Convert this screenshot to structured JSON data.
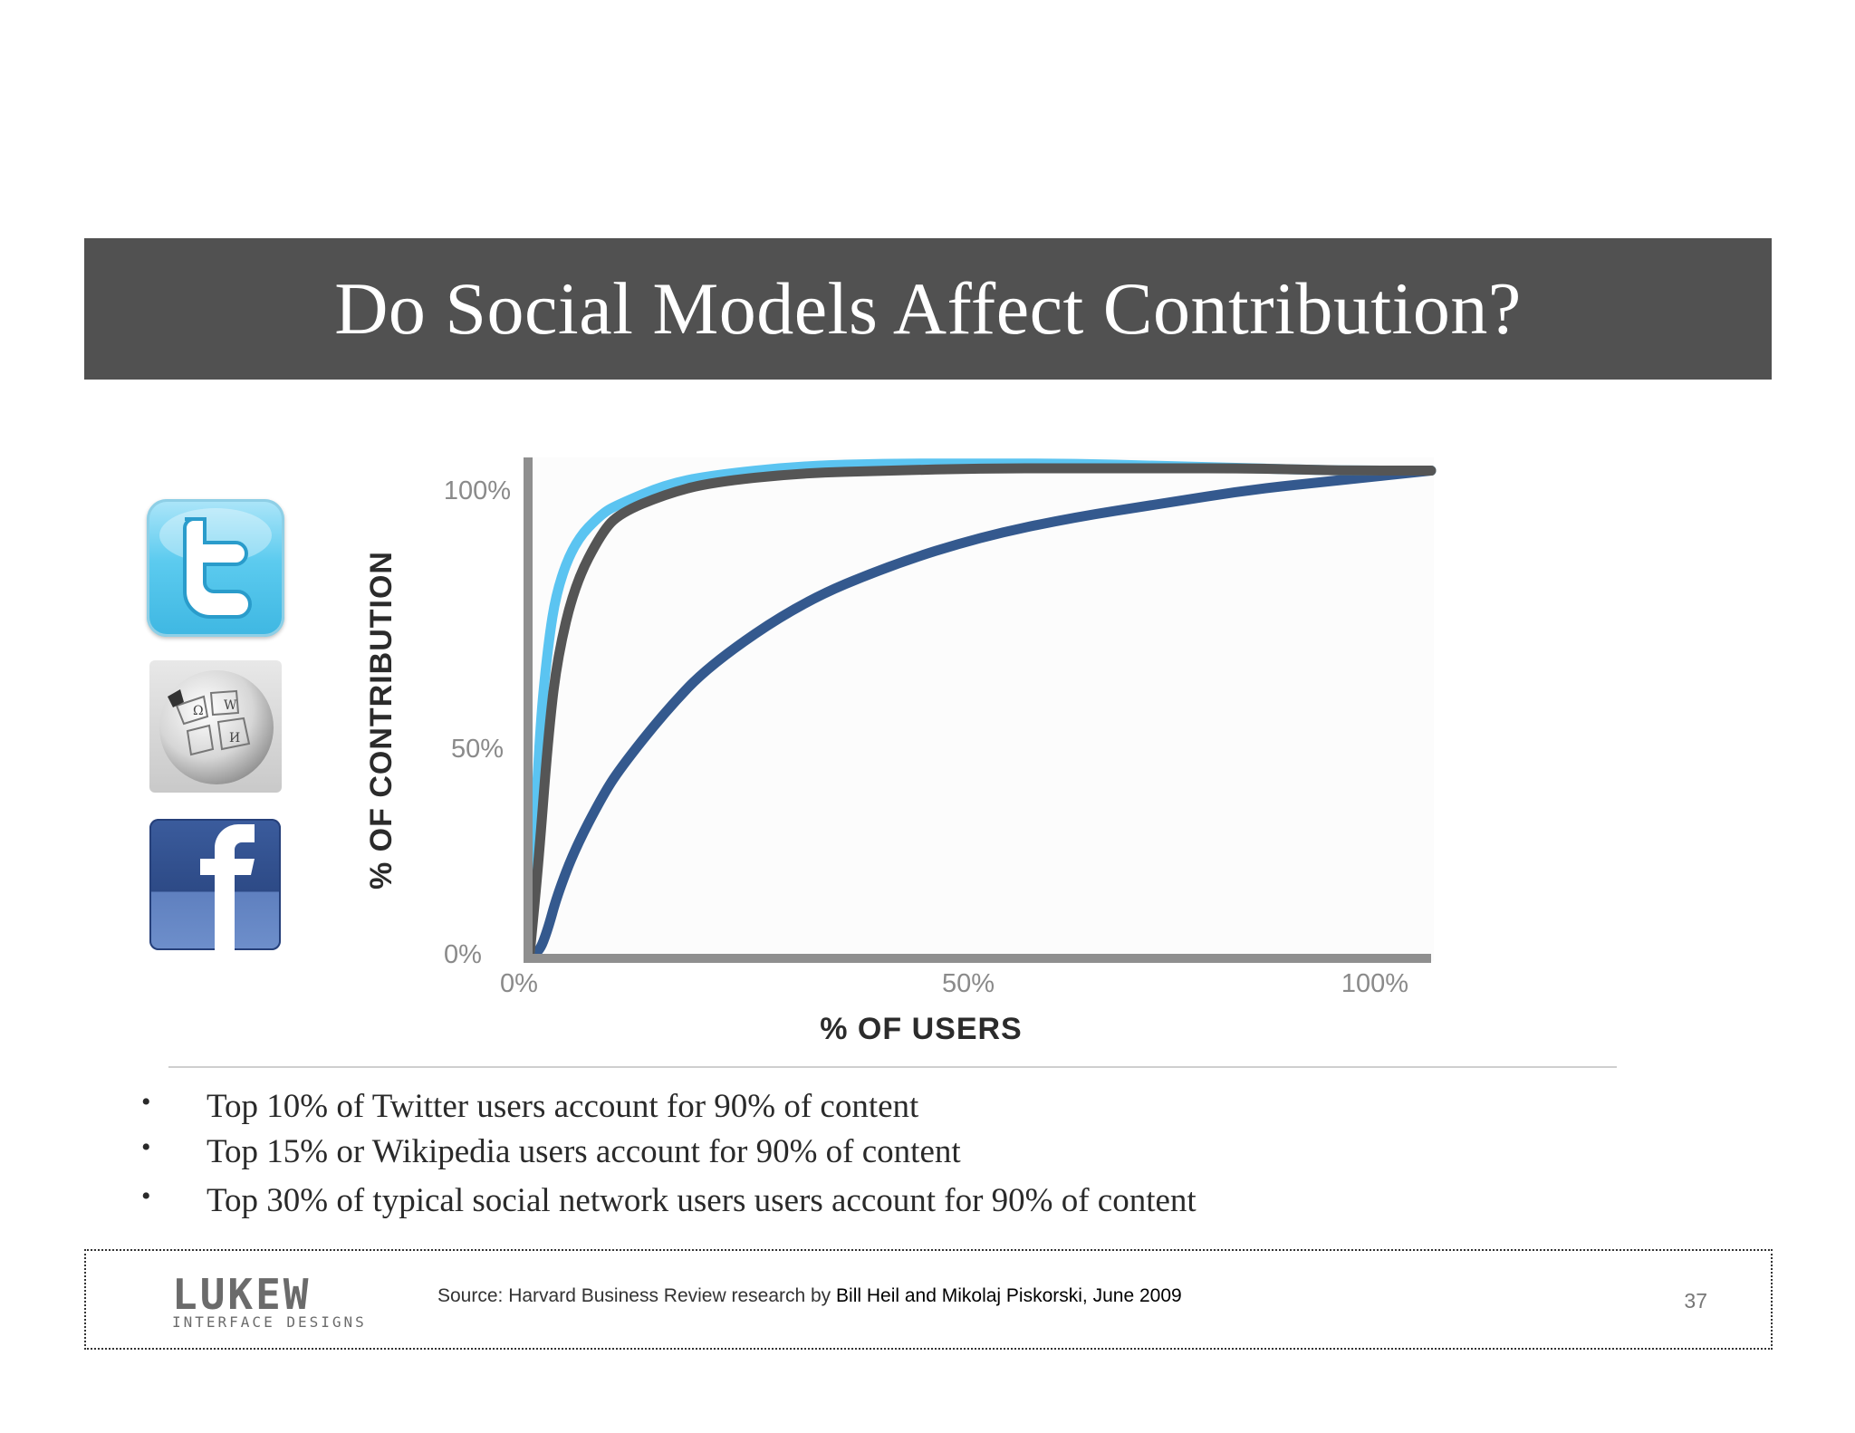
{
  "slide": {
    "title": "Do Social Models Affect Contribution?",
    "page_number": "37"
  },
  "icons": [
    "twitter-icon",
    "wikipedia-icon",
    "facebook-icon"
  ],
  "chart_data": {
    "type": "line",
    "title": "",
    "xlabel": "% OF USERS",
    "ylabel": "% OF CONTRIBUTION",
    "xlim": [
      0,
      100
    ],
    "ylim": [
      0,
      100
    ],
    "x_ticks": [
      "0%",
      "50%",
      "100%"
    ],
    "y_ticks": [
      "0%",
      "50%",
      "100%"
    ],
    "grid": false,
    "legend": "none",
    "series": [
      {
        "color": "#5bc4f1",
        "x": [
          0,
          1,
          2,
          3,
          5,
          8,
          10,
          15,
          20,
          30,
          40,
          50,
          60,
          70,
          80,
          90,
          100
        ],
        "y": [
          0,
          45,
          65,
          77,
          87,
          93,
          95,
          99,
          101,
          103,
          103.5,
          103.5,
          103.5,
          103,
          102.5,
          102,
          102
        ]
      },
      {
        "color": "#555555",
        "x": [
          0,
          1,
          2,
          3,
          5,
          8,
          10,
          15,
          20,
          30,
          40,
          50,
          60,
          70,
          80,
          90,
          100
        ],
        "y": [
          0,
          20,
          45,
          62,
          78,
          89,
          93,
          97,
          99.5,
          101.5,
          102,
          102.5,
          102.5,
          102.5,
          102.5,
          102,
          102
        ]
      },
      {
        "color": "#34598e",
        "x": [
          0,
          1,
          2,
          3,
          5,
          8,
          10,
          15,
          20,
          30,
          40,
          50,
          60,
          70,
          80,
          90,
          100
        ],
        "y": [
          0,
          0,
          5,
          12,
          22,
          33,
          39,
          51,
          61,
          74,
          82,
          88,
          92,
          95,
          98,
          100,
          102
        ]
      }
    ]
  },
  "bullets": [
    "Top 10% of Twitter users account for 90% of content",
    "Top 15% or Wikipedia users account for 90% of content",
    "Top 30% of typical social network users users account for 90% of content"
  ],
  "footer": {
    "logo_main": "LUKEW",
    "logo_sub": "INTERFACE DESIGNS",
    "source_prefix": "Source: Harvard Business Review research by ",
    "source_authors": "Bill Heil and Mikolaj Piskorski, June 2009"
  }
}
